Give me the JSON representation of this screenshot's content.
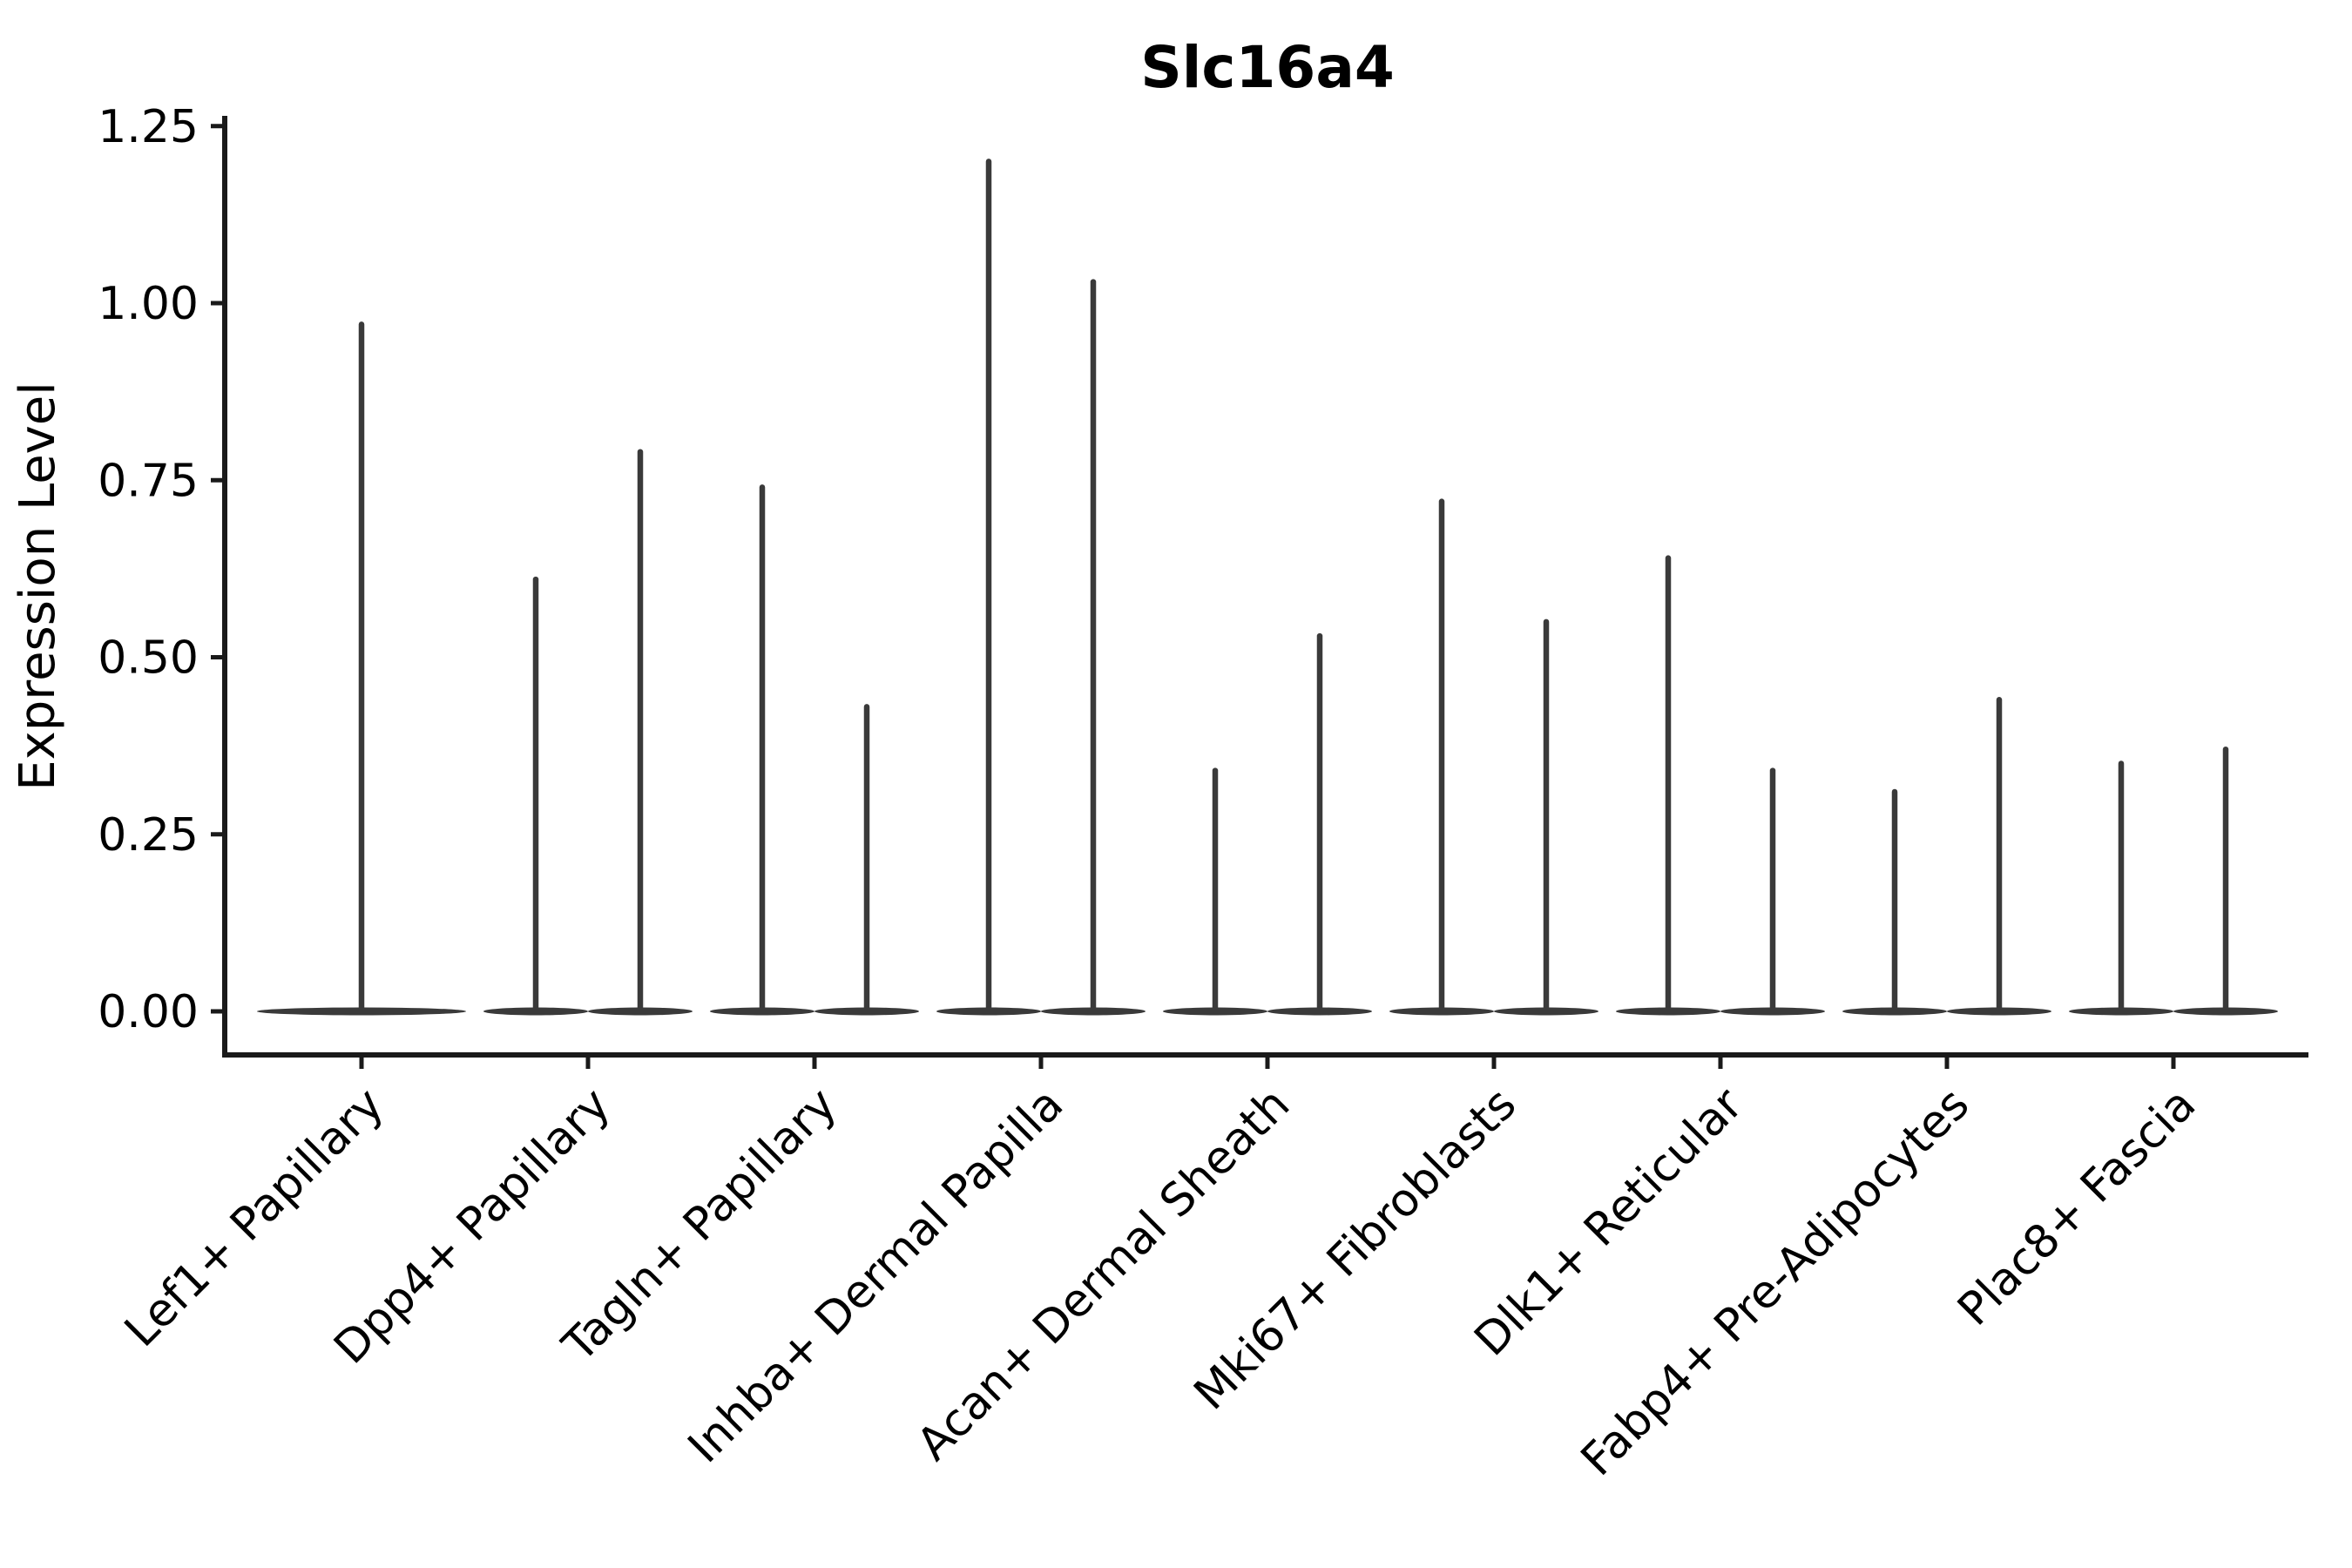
{
  "figure": {
    "background": "#ffffff"
  },
  "chart_data": {
    "type": "violin",
    "title": "Slc16a4",
    "xlabel": "",
    "ylabel": "Expression Level",
    "grid": false,
    "legend": null,
    "ylim": [
      -0.06,
      1.27
    ],
    "yticks": [
      0.0,
      0.25,
      0.5,
      0.75,
      1.0,
      1.25
    ],
    "ytick_labels": [
      "0.00",
      "0.25",
      "0.50",
      "0.75",
      "1.00",
      "1.25"
    ],
    "categories": [
      {
        "label": "Lef1+ Papillary",
        "spike_maxima": [
          0.97
        ]
      },
      {
        "label": "Dpp4+ Papillary",
        "spike_maxima": [
          0.61,
          0.79
        ]
      },
      {
        "label": "Tagln+ Papillary",
        "spike_maxima": [
          0.74,
          0.43
        ]
      },
      {
        "label": "Inhba+ Dermal Papilla",
        "spike_maxima": [
          1.2,
          1.03
        ]
      },
      {
        "label": "Acan+ Dermal Sheath",
        "spike_maxima": [
          0.34,
          0.53
        ]
      },
      {
        "label": "Mki67+ Fibroblasts",
        "spike_maxima": [
          0.72,
          0.55
        ]
      },
      {
        "label": "Dlk1+ Reticular",
        "spike_maxima": [
          0.64,
          0.34
        ]
      },
      {
        "label": "Fabp4+ Pre-Adipocytes",
        "spike_maxima": [
          0.31,
          0.44
        ]
      },
      {
        "label": "Plac8+ Fascia",
        "spike_maxima": [
          0.35,
          0.37
        ]
      }
    ],
    "colors": {
      "violin": "#3a3a3a",
      "axis": "#1a1a1a",
      "text": "#000000"
    }
  }
}
